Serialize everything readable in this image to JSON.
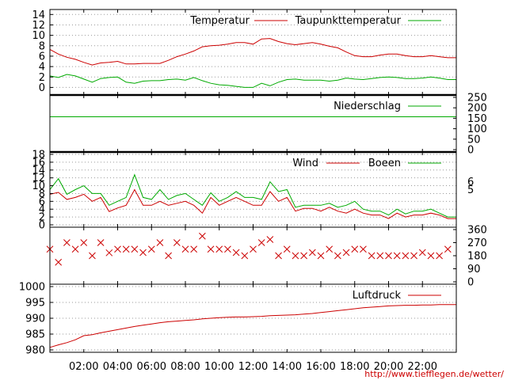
{
  "colors": {
    "red": "#cc0000",
    "green": "#00aa00",
    "grid": "#9a9a9a",
    "axis": "#000000"
  },
  "footer_url": "http://www.tiefflegen.de/wetter/",
  "chart_data": [
    {
      "type": "line",
      "panel": "temperature",
      "x_unit": "hours",
      "x": [
        0,
        0.5,
        1,
        1.5,
        2,
        2.5,
        3,
        3.5,
        4,
        4.5,
        5,
        5.5,
        6,
        6.5,
        7,
        7.5,
        8,
        8.5,
        9,
        9.5,
        10,
        10.5,
        11,
        11.5,
        12,
        12.5,
        13,
        13.5,
        14,
        14.5,
        15,
        15.5,
        16,
        16.5,
        17,
        17.5,
        18,
        18.5,
        19,
        19.5,
        20,
        20.5,
        21,
        21.5,
        22,
        22.5,
        23,
        23.5
      ],
      "series": [
        {
          "name": "Temperatur",
          "color": "red",
          "values": [
            7.3,
            6.4,
            5.8,
            5.4,
            4.8,
            4.3,
            4.7,
            4.8,
            5.0,
            4.5,
            4.5,
            4.6,
            4.6,
            4.6,
            5.2,
            5.9,
            6.4,
            7.0,
            7.8,
            8.0,
            8.1,
            8.3,
            8.6,
            8.6,
            8.3,
            9.3,
            9.4,
            8.8,
            8.4,
            8.2,
            8.4,
            8.6,
            8.3,
            7.9,
            7.6,
            6.8,
            6.1,
            5.9,
            5.9,
            6.2,
            6.4,
            6.4,
            6.1,
            5.9,
            5.9,
            6.1,
            5.9,
            5.7
          ]
        },
        {
          "name": "Taupunkttemperatur",
          "color": "green",
          "values": [
            2.2,
            1.9,
            2.5,
            2.2,
            1.6,
            1.0,
            1.7,
            1.9,
            2.0,
            1.0,
            0.8,
            1.2,
            1.3,
            1.3,
            1.5,
            1.6,
            1.4,
            1.9,
            1.3,
            0.8,
            0.5,
            0.4,
            0.2,
            0.0,
            0.0,
            0.8,
            0.3,
            1.0,
            1.5,
            1.6,
            1.4,
            1.4,
            1.4,
            1.2,
            1.4,
            1.8,
            1.6,
            1.5,
            1.7,
            1.9,
            2.0,
            1.9,
            1.7,
            1.7,
            1.8,
            2.0,
            1.8,
            1.5
          ]
        }
      ],
      "yticks": [
        "14",
        "12",
        "10",
        "8",
        "6",
        "4",
        "2",
        "0"
      ],
      "ylim": [
        -1,
        14.5
      ],
      "grid": true
    },
    {
      "type": "line",
      "panel": "precipitation",
      "series": [
        {
          "name": "Niederschlag",
          "color": "green",
          "constant": 157
        }
      ],
      "yticks_right": [
        "250",
        "200",
        "150",
        "100",
        "50",
        "0"
      ],
      "ylim": [
        0,
        250
      ],
      "grid": false
    },
    {
      "type": "line",
      "panel": "wind",
      "x_unit": "hours",
      "x": [
        0,
        0.5,
        1,
        1.5,
        2,
        2.5,
        3,
        3.5,
        4,
        4.5,
        5,
        5.5,
        6,
        6.5,
        7,
        7.5,
        8,
        8.5,
        9,
        9.5,
        10,
        10.5,
        11,
        11.5,
        12,
        12.5,
        13,
        13.5,
        14,
        14.5,
        15,
        15.5,
        16,
        16.5,
        17,
        17.5,
        18,
        18.5,
        19,
        19.5,
        20,
        20.5,
        21,
        21.5,
        22,
        22.5,
        23,
        23.5
      ],
      "series": [
        {
          "name": "Wind",
          "color": "red",
          "values": [
            7.8,
            8.3,
            6.5,
            7.0,
            7.8,
            6.0,
            7.0,
            3.4,
            4.3,
            5.0,
            9.0,
            5.0,
            5.0,
            6.0,
            5.0,
            5.5,
            6.0,
            5.0,
            3.0,
            7.0,
            5.0,
            6.0,
            7.0,
            6.0,
            5.0,
            5.0,
            8.5,
            6.0,
            7.0,
            3.5,
            4.2,
            4.2,
            3.5,
            4.5,
            3.5,
            3.0,
            4.0,
            3.0,
            2.5,
            2.5,
            1.6,
            3.0,
            2.0,
            2.5,
            2.5,
            3.0,
            2.5,
            1.6
          ]
        },
        {
          "name": "Boeen",
          "color": "green",
          "values": [
            9.0,
            11.8,
            7.8,
            9.0,
            10.0,
            8.0,
            8.0,
            5.0,
            6.0,
            7.0,
            12.8,
            7.0,
            6.5,
            9.0,
            6.5,
            7.5,
            8.0,
            6.5,
            5.0,
            8.2,
            6.0,
            7.0,
            8.5,
            7.0,
            7.0,
            6.5,
            11.0,
            8.5,
            9.0,
            4.5,
            5.0,
            5.0,
            5.0,
            5.5,
            4.5,
            5.0,
            6.0,
            4.0,
            3.5,
            3.5,
            2.5,
            4.0,
            2.8,
            3.5,
            3.5,
            4.0,
            3.0,
            2.0
          ]
        }
      ],
      "yticks": [
        "18",
        "16",
        "14",
        "12",
        "10",
        "8",
        "6",
        "4",
        "2",
        "0"
      ],
      "ylim": [
        0,
        18
      ],
      "yticks_right_labels": [
        "6",
        "5"
      ],
      "grid": true
    },
    {
      "type": "scatter",
      "panel": "wind-direction",
      "marker": "x",
      "x_unit": "hours",
      "x": [
        0,
        0.5,
        1,
        1.5,
        2,
        2.5,
        3,
        3.5,
        4,
        4.5,
        5,
        5.5,
        6,
        6.5,
        7,
        7.5,
        8,
        8.5,
        9,
        9.5,
        10,
        10.5,
        11,
        11.5,
        12,
        12.5,
        13,
        13.5,
        14,
        14.5,
        15,
        15.5,
        16,
        16.5,
        17,
        17.5,
        18,
        18.5,
        19,
        19.5,
        20,
        20.5,
        21,
        21.5,
        22,
        22.5,
        23,
        23.5
      ],
      "series": [
        {
          "color": "red",
          "values": [
            225,
            135,
            270,
            225,
            270,
            180,
            270,
            200,
            225,
            225,
            225,
            202,
            225,
            270,
            180,
            270,
            225,
            225,
            315,
            225,
            225,
            225,
            202,
            180,
            225,
            270,
            292,
            180,
            225,
            180,
            180,
            202,
            180,
            225,
            180,
            202,
            225,
            225,
            180,
            180,
            180,
            180,
            180,
            180,
            202,
            180,
            180,
            225
          ]
        }
      ],
      "yticks_right": [
        "360",
        "270",
        "180",
        "90",
        "0"
      ],
      "ylim": [
        0,
        360
      ],
      "grid": false
    },
    {
      "type": "line",
      "panel": "pressure",
      "x_unit": "hours",
      "x": [
        0,
        0.5,
        1,
        1.5,
        2,
        2.5,
        3,
        3.5,
        4,
        4.5,
        5,
        5.5,
        6,
        6.5,
        7,
        7.5,
        8,
        8.5,
        9,
        9.5,
        10,
        10.5,
        11,
        11.5,
        12,
        12.5,
        13,
        13.5,
        14,
        14.5,
        15,
        15.5,
        16,
        16.5,
        17,
        17.5,
        18,
        18.5,
        19,
        19.5,
        20,
        20.5,
        21,
        21.5,
        22,
        22.5,
        23,
        23.5
      ],
      "series": [
        {
          "name": "Luftdruck",
          "color": "red",
          "values": [
            980.8,
            981.6,
            982.3,
            983.2,
            984.5,
            984.8,
            985.4,
            985.9,
            986.4,
            986.9,
            987.4,
            987.8,
            988.2,
            988.6,
            988.9,
            989.1,
            989.3,
            989.5,
            989.8,
            990.0,
            990.2,
            990.3,
            990.4,
            990.4,
            990.5,
            990.6,
            990.8,
            990.9,
            991.0,
            991.1,
            991.3,
            991.5,
            991.8,
            992.1,
            992.4,
            992.7,
            993.0,
            993.3,
            993.5,
            993.7,
            993.9,
            994.0,
            994.1,
            994.1,
            994.2,
            994.2,
            994.3,
            994.3
          ]
        }
      ],
      "yticks": [
        "1000",
        "995",
        "990",
        "985",
        "980"
      ],
      "ylim": [
        980,
        1000
      ],
      "grid": true
    }
  ],
  "x_axis": {
    "tick_labels": [
      "02:00",
      "04:00",
      "06:00",
      "08:00",
      "10:00",
      "12:00",
      "14:00",
      "16:00",
      "18:00",
      "20:00",
      "22:00"
    ],
    "tick_hours": [
      2,
      4,
      6,
      8,
      10,
      12,
      14,
      16,
      18,
      20,
      22
    ],
    "xlim": [
      0,
      24
    ]
  }
}
